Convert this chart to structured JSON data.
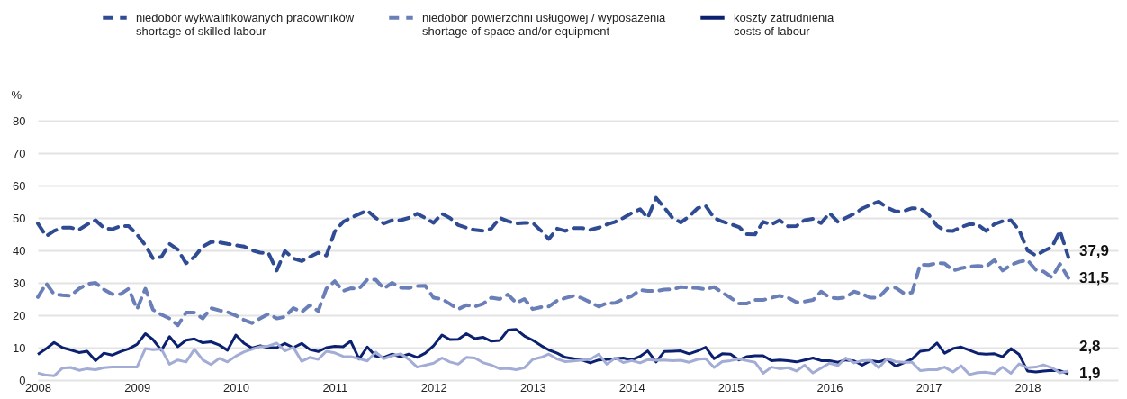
{
  "chart_data": {
    "type": "line",
    "ylabel": "%",
    "legend": "top",
    "grid": "y",
    "ylim": [
      0,
      80
    ],
    "yticks": [
      0,
      10,
      20,
      30,
      40,
      50,
      60,
      70,
      80
    ],
    "xlim": [
      "2008-01",
      "2018-12"
    ],
    "xticks": [
      {
        "value": "2008-01",
        "label": "2008"
      },
      {
        "value": "2009-01",
        "label": "2009"
      },
      {
        "value": "2010-01",
        "label": "2010"
      },
      {
        "value": "2011-01",
        "label": "2011"
      },
      {
        "value": "2012-01",
        "label": "2012"
      },
      {
        "value": "2013-01",
        "label": "2013"
      },
      {
        "value": "2014-01",
        "label": "2014"
      },
      {
        "value": "2015-01",
        "label": "2015"
      },
      {
        "value": "2016-01",
        "label": "2016"
      },
      {
        "value": "2017-01",
        "label": "2017"
      },
      {
        "value": "2018-01",
        "label": "2018"
      }
    ],
    "x": [
      "2008-01",
      "2008-02",
      "2008-03",
      "2008-04",
      "2008-05",
      "2008-06",
      "2008-07",
      "2008-08",
      "2008-09",
      "2008-10",
      "2008-11",
      "2008-12",
      "2009-01",
      "2009-02",
      "2009-03",
      "2009-04",
      "2009-05",
      "2009-06",
      "2009-07",
      "2009-08",
      "2009-09",
      "2009-10",
      "2009-11",
      "2009-12",
      "2010-01",
      "2010-02",
      "2010-03",
      "2010-04",
      "2010-05",
      "2010-06",
      "2010-07",
      "2010-08",
      "2010-09",
      "2010-10",
      "2010-11",
      "2010-12",
      "2011-01",
      "2011-02",
      "2011-03",
      "2011-04",
      "2011-05",
      "2011-06",
      "2011-07",
      "2011-08",
      "2011-09",
      "2011-10",
      "2011-11",
      "2011-12",
      "2012-01",
      "2012-02",
      "2012-03",
      "2012-04",
      "2012-05",
      "2012-06",
      "2012-07",
      "2012-08",
      "2012-09",
      "2012-10",
      "2012-11",
      "2012-12",
      "2013-01",
      "2013-02",
      "2013-03",
      "2013-04",
      "2013-05",
      "2013-06",
      "2013-07",
      "2013-08",
      "2013-09",
      "2013-10",
      "2013-11",
      "2013-12",
      "2014-01",
      "2014-02",
      "2014-03",
      "2014-04",
      "2014-05",
      "2014-06",
      "2014-07",
      "2014-08",
      "2014-09",
      "2014-10",
      "2014-11",
      "2014-12",
      "2015-01",
      "2015-02",
      "2015-03",
      "2015-04",
      "2015-05",
      "2015-06",
      "2015-07",
      "2015-08",
      "2015-09",
      "2015-10",
      "2015-11",
      "2015-12",
      "2016-01",
      "2016-02",
      "2016-03",
      "2016-04",
      "2016-05",
      "2016-06",
      "2016-07",
      "2016-08",
      "2016-09",
      "2016-10",
      "2016-11",
      "2016-12",
      "2017-01",
      "2017-02",
      "2017-03",
      "2017-04",
      "2017-05",
      "2017-06",
      "2017-07",
      "2017-08",
      "2017-09",
      "2017-10",
      "2017-11",
      "2017-12",
      "2018-01",
      "2018-02",
      "2018-03",
      "2018-04",
      "2018-05",
      "2018-06"
    ],
    "series": [
      {
        "name": "niedobór wykwalifikowanych pracowników\nshortage of skilled labour",
        "color": "#2f4b93",
        "line_style": "dashed",
        "values": [
          48.3,
          44.4,
          46,
          47,
          47,
          46.4,
          48,
          49.3,
          46.9,
          46.5,
          47.5,
          47.5,
          44.9,
          41.6,
          37.5,
          38,
          42,
          40.2,
          36,
          38,
          41.2,
          42.6,
          42.5,
          42,
          41.6,
          41.2,
          40,
          39.3,
          39.2,
          33.8,
          39.8,
          37.5,
          36.7,
          38,
          39.3,
          38.4,
          45.8,
          48.8,
          50,
          51.2,
          52.3,
          50,
          48.3,
          49.3,
          49.3,
          50,
          51.3,
          50,
          48.5,
          51.3,
          50,
          47.8,
          47,
          46.3,
          46,
          46.7,
          50,
          49,
          48.3,
          48.5,
          48.5,
          46,
          43.5,
          46.7,
          46,
          46.9,
          46.9,
          46.3,
          47,
          48,
          48.8,
          50,
          51.5,
          52.7,
          50,
          56.2,
          53.2,
          50,
          48.6,
          50.5,
          53,
          53.7,
          50,
          48.9,
          48.1,
          47.2,
          45,
          44.9,
          48.8,
          48,
          49.3,
          47.4,
          47.5,
          49.3,
          49.7,
          48.4,
          51.5,
          48.8,
          50,
          51.3,
          52.9,
          54.1,
          55,
          53.2,
          52,
          52.1,
          53,
          52.9,
          51,
          47.6,
          46.1,
          46,
          47.2,
          48.1,
          48,
          46,
          48.1,
          49,
          49.3,
          46.3,
          40,
          38.4,
          39.8,
          41,
          46,
          37.9
        ]
      },
      {
        "name": "niedobór powierzchni usługowej / wyposażenia\nshortage of space and/or equipment",
        "color": "#6a7fb8",
        "line_style": "dashed",
        "values": [
          25.6,
          29.8,
          26.5,
          26.2,
          26,
          28.2,
          29.6,
          30,
          27.9,
          26.5,
          26.5,
          28.2,
          21.9,
          28.2,
          21.7,
          20.2,
          19,
          16.9,
          20.8,
          20.8,
          19,
          22.2,
          21.5,
          21,
          19.9,
          18.5,
          17.6,
          19,
          20.4,
          19,
          19.5,
          22.2,
          21,
          23.1,
          21.3,
          28.2,
          30.5,
          27.5,
          28.3,
          28.2,
          31,
          31,
          28.2,
          30,
          28.5,
          28.4,
          29,
          29.1,
          25.4,
          25,
          23.5,
          21.9,
          23.1,
          22.7,
          23.5,
          25.4,
          25,
          26.4,
          23.8,
          25,
          21.9,
          22.5,
          22.7,
          24.5,
          25.3,
          26,
          25.3,
          24,
          22.7,
          23.7,
          23.8,
          25,
          25.9,
          27.8,
          27.5,
          27.5,
          27.9,
          28,
          28.7,
          28.5,
          28.4,
          28,
          28.7,
          27,
          25.4,
          23.6,
          23.6,
          24.7,
          24.7,
          25.4,
          26,
          25.4,
          24,
          24.2,
          24.7,
          27.3,
          25.5,
          25.2,
          25.5,
          27.3,
          26.5,
          25.4,
          25.5,
          28.2,
          28.5,
          26.8,
          27,
          35.6,
          35.5,
          36.1,
          36,
          33.8,
          34.5,
          35,
          35.2,
          35,
          37,
          33.8,
          35.5,
          36.5,
          37,
          34,
          33.5,
          31.7,
          35.8,
          31.5
        ]
      },
      {
        "name": "koszty zatrudnienia\ncosts of labour",
        "color": "#0b2170",
        "line_style": "solid",
        "values": [
          7.9,
          9.7,
          11.6,
          10,
          9.3,
          8.5,
          8.9,
          6,
          8.3,
          7.7,
          8.8,
          9.6,
          11,
          14.3,
          12.5,
          9.2,
          13.4,
          10.3,
          12.3,
          12.7,
          11.5,
          11.8,
          10.8,
          9.2,
          13.9,
          11.3,
          9.9,
          10.6,
          10,
          10,
          11.3,
          10,
          11.3,
          9.4,
          8.8,
          10,
          10.4,
          10.3,
          12,
          6.5,
          10.2,
          7.4,
          7,
          8,
          7.2,
          8,
          7,
          8.3,
          10.6,
          13.9,
          12.5,
          12.6,
          14.3,
          12.8,
          13.2,
          12,
          12.2,
          15.4,
          15.6,
          13.6,
          12.3,
          10.6,
          9.3,
          8.3,
          7,
          6.6,
          6.2,
          5.3,
          6.2,
          6.4,
          6.6,
          6.8,
          6.2,
          7.3,
          9,
          5.6,
          8.8,
          8.9,
          9,
          8.1,
          9,
          10.1,
          6.6,
          8.1,
          8,
          6.2,
          7.2,
          7.5,
          7.5,
          6,
          6.2,
          6,
          5.6,
          6.2,
          6.8,
          6,
          6,
          5.5,
          6.2,
          5.9,
          4.6,
          6,
          5.6,
          6.4,
          4.3,
          5.3,
          6.5,
          8.9,
          9.2,
          11.4,
          8.3,
          9.7,
          10.2,
          9.2,
          8.2,
          8,
          8.1,
          7.2,
          9.7,
          7.9,
          2.8,
          2.5,
          2.8,
          3,
          2.9,
          1.9
        ]
      },
      {
        "color": "#a3acd4",
        "line_style": "solid",
        "values": [
          2.2,
          1.5,
          1.3,
          3.7,
          3.9,
          3,
          3.5,
          3.2,
          3.8,
          4,
          4,
          4,
          4,
          9.7,
          9.4,
          9.6,
          4.9,
          6.2,
          5.6,
          9.5,
          6.2,
          4.8,
          6.7,
          5.6,
          7.4,
          8.7,
          9.5,
          10.3,
          10.5,
          11.4,
          9,
          10.1,
          5.8,
          7,
          6.4,
          8.9,
          8.4,
          7.3,
          7.2,
          6.6,
          5.9,
          8.6,
          6.6,
          7.5,
          8.1,
          6.4,
          4,
          4.6,
          5.2,
          6.8,
          5.6,
          4.9,
          7,
          6.8,
          5.4,
          4.6,
          3.5,
          3.6,
          3.2,
          3.8,
          6.4,
          7,
          8,
          6.5,
          5.7,
          5.9,
          6.2,
          6.4,
          8,
          4.9,
          6.8,
          5.4,
          6,
          5.3,
          6.3,
          6.1,
          6.2,
          6,
          6.1,
          5.5,
          6.4,
          6.6,
          3.9,
          5.7,
          6,
          6.5,
          6,
          5.5,
          2.1,
          4,
          3.5,
          3.8,
          2.8,
          4.6,
          2.2,
          3.7,
          5.2,
          4.5,
          6.8,
          5.3,
          6,
          6.1,
          3.8,
          6.6,
          5.7,
          5.5,
          5.5,
          2.9,
          3.2,
          3.2,
          4,
          2.5,
          4.4,
          1.7,
          2.3,
          2.4,
          2,
          4,
          2.1,
          5,
          3.8,
          4,
          4.7,
          3.8,
          2.2,
          2.8
        ]
      }
    ],
    "annotations": [
      {
        "text": "37,9",
        "x": "2018-06",
        "y": 37.9
      },
      {
        "text": "31,5",
        "x": "2018-06",
        "y": 31.5
      },
      {
        "text": "2,8",
        "x": "2018-06",
        "y": 2.8
      },
      {
        "text": "1,9",
        "x": "2018-06",
        "y": 1.9
      }
    ]
  }
}
